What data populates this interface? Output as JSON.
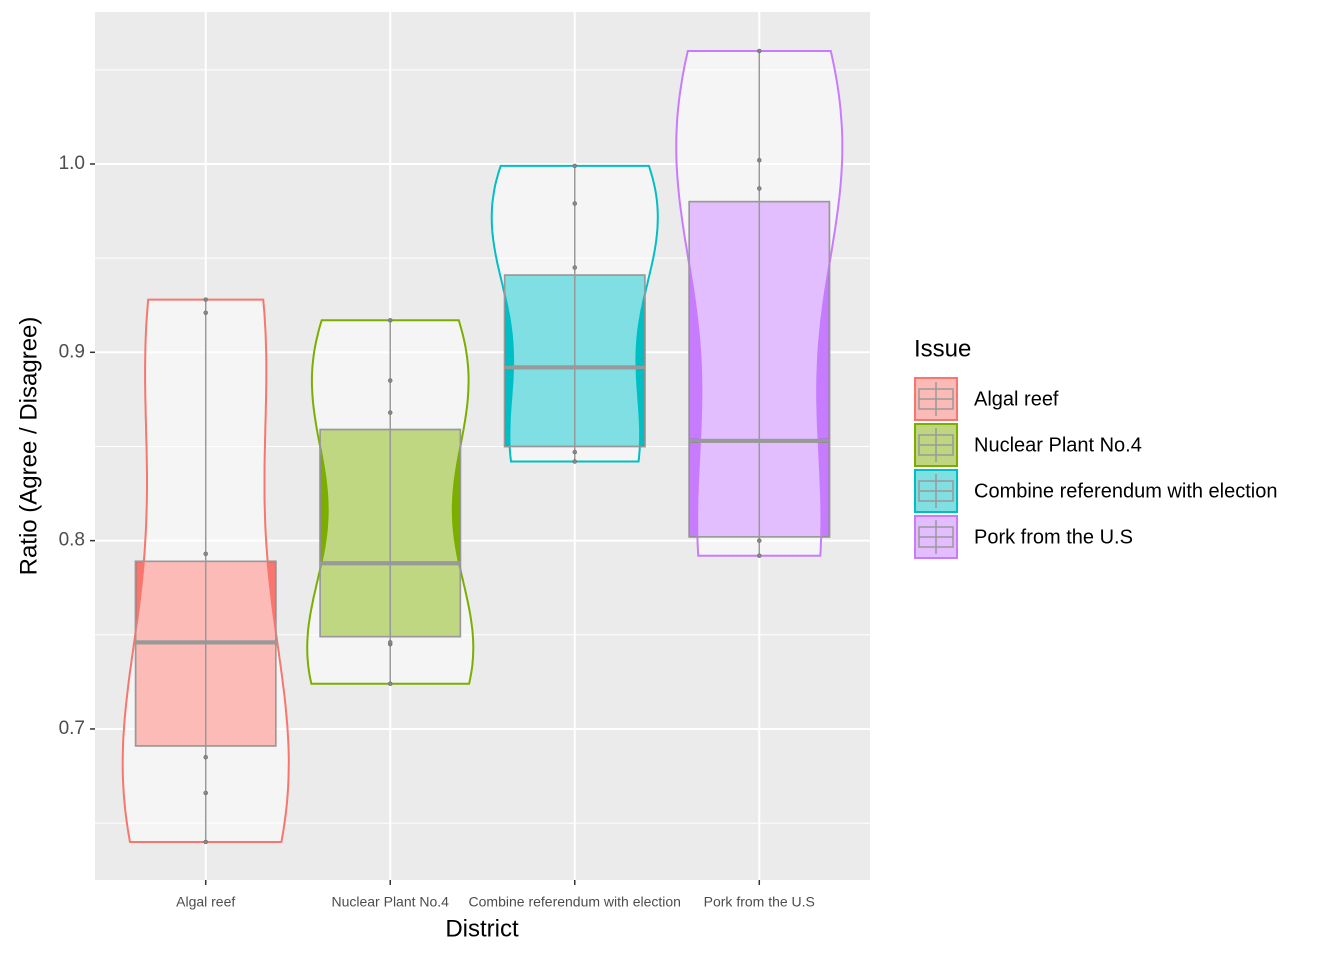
{
  "chart_data": {
    "type": "boxviolin",
    "x_label": "District",
    "y_label": "Ratio (Agree / Disagree)",
    "legend_title": "Issue",
    "categories": [
      "Algal reef",
      "Nuclear Plant No.4",
      "Combine referendum with election",
      "Pork from the U.S"
    ],
    "ylim": [
      0.6198,
      1.0807
    ],
    "yticks": [
      0.7,
      0.8,
      0.9,
      {
        "value": 1,
        "label": "1.0"
      }
    ],
    "grid": true,
    "series": [
      {
        "name": "Algal reef",
        "color": "#F8766D",
        "q1": 0.691,
        "median": 0.746,
        "q3": 0.789,
        "points": [
          0.64,
          0.666,
          0.685,
          0.793,
          0.921,
          0.928
        ]
      },
      {
        "name": "Nuclear Plant No.4",
        "color": "#7CAE00",
        "q1": 0.749,
        "median": 0.788,
        "q3": 0.859,
        "points": [
          0.724,
          0.745,
          0.746,
          0.868,
          0.885,
          0.917
        ]
      },
      {
        "name": "Combine referendum with election",
        "color": "#00BFC4",
        "q1": 0.85,
        "median": 0.892,
        "q3": 0.941,
        "points": [
          0.842,
          0.847,
          0.945,
          0.979,
          0.999
        ]
      },
      {
        "name": "Pork from the U.S",
        "color": "#C77CFF",
        "q1": 0.802,
        "median": 0.853,
        "q3": 0.98,
        "points": [
          0.792,
          0.8,
          0.987,
          1.002,
          1.06
        ]
      }
    ]
  }
}
